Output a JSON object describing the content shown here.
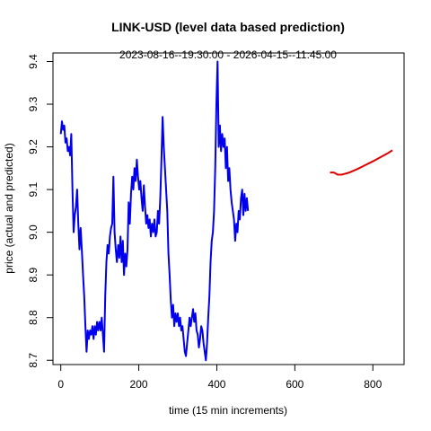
{
  "chart_data": {
    "type": "line",
    "title": "LINK-USD (level data based prediction)",
    "subtitle": "2023-08-16--19:30:00  -  2026-04-15--11:45:00",
    "xlabel": "time (15 min increments)",
    "ylabel": "price (actual and predicted)",
    "xlim": [
      -20,
      880
    ],
    "ylim": [
      8.69,
      9.42
    ],
    "x_ticks": [
      0,
      200,
      400,
      600,
      800
    ],
    "y_ticks": [
      8.7,
      8.8,
      8.9,
      9.0,
      9.1,
      9.2,
      9.3,
      9.4
    ],
    "grid": false,
    "legend": "none",
    "series": [
      {
        "color": "#0000ee",
        "points": [
          [
            0,
            9.23
          ],
          [
            3,
            9.26
          ],
          [
            6,
            9.24
          ],
          [
            9,
            9.25
          ],
          [
            12,
            9.21
          ],
          [
            15,
            9.22
          ],
          [
            18,
            9.19
          ],
          [
            21,
            9.2
          ],
          [
            24,
            9.18
          ],
          [
            27,
            9.23
          ],
          [
            30,
            9.1
          ],
          [
            33,
            9.0
          ],
          [
            36,
            9.04
          ],
          [
            39,
            9.06
          ],
          [
            42,
            9.1
          ],
          [
            45,
            9.02
          ],
          [
            48,
            8.96
          ],
          [
            51,
            9.01
          ],
          [
            54,
            8.96
          ],
          [
            57,
            8.9
          ],
          [
            60,
            8.85
          ],
          [
            63,
            8.78
          ],
          [
            66,
            8.72
          ],
          [
            69,
            8.77
          ],
          [
            72,
            8.75
          ],
          [
            75,
            8.77
          ],
          [
            78,
            8.76
          ],
          [
            81,
            8.78
          ],
          [
            84,
            8.75
          ],
          [
            87,
            8.78
          ],
          [
            90,
            8.76
          ],
          [
            93,
            8.79
          ],
          [
            96,
            8.77
          ],
          [
            99,
            8.79
          ],
          [
            102,
            8.77
          ],
          [
            105,
            8.8
          ],
          [
            108,
            8.76
          ],
          [
            111,
            8.72
          ],
          [
            114,
            8.85
          ],
          [
            117,
            8.93
          ],
          [
            120,
            8.97
          ],
          [
            123,
            8.95
          ],
          [
            126,
            8.99
          ],
          [
            129,
            9.01
          ],
          [
            132,
            9.02
          ],
          [
            135,
            9.13
          ],
          [
            138,
            9.0
          ],
          [
            141,
            8.96
          ],
          [
            144,
            8.93
          ],
          [
            147,
            8.97
          ],
          [
            150,
            8.94
          ],
          [
            153,
            8.99
          ],
          [
            156,
            8.93
          ],
          [
            159,
            8.98
          ],
          [
            162,
            8.9
          ],
          [
            165,
            8.95
          ],
          [
            168,
            8.92
          ],
          [
            171,
            8.96
          ],
          [
            174,
            9.07
          ],
          [
            177,
            9.02
          ],
          [
            180,
            9.09
          ],
          [
            183,
            9.13
          ],
          [
            186,
            9.1
          ],
          [
            189,
            9.15
          ],
          [
            192,
            9.12
          ],
          [
            195,
            9.17
          ],
          [
            198,
            9.13
          ],
          [
            201,
            9.1
          ],
          [
            204,
            9.12
          ],
          [
            207,
            9.08
          ],
          [
            210,
            9.05
          ],
          [
            213,
            9.11
          ],
          [
            216,
            9.06
          ],
          [
            219,
            9.02
          ],
          [
            222,
            9.04
          ],
          [
            225,
            9.01
          ],
          [
            228,
            9.03
          ],
          [
            231,
            8.99
          ],
          [
            234,
            9.02
          ],
          [
            237,
            9.0
          ],
          [
            240,
            9.03
          ],
          [
            243,
            8.99
          ],
          [
            246,
            9.0
          ],
          [
            249,
            9.05
          ],
          [
            252,
            9.02
          ],
          [
            255,
            9.08
          ],
          [
            258,
            9.17
          ],
          [
            261,
            9.27
          ],
          [
            264,
            9.2
          ],
          [
            267,
            9.15
          ],
          [
            270,
            9.1
          ],
          [
            273,
            9.05
          ],
          [
            276,
            8.95
          ],
          [
            279,
            8.9
          ],
          [
            282,
            8.84
          ],
          [
            285,
            8.8
          ],
          [
            288,
            8.83
          ],
          [
            291,
            8.78
          ],
          [
            294,
            8.81
          ],
          [
            297,
            8.79
          ],
          [
            300,
            8.81
          ],
          [
            303,
            8.78
          ],
          [
            306,
            8.8
          ],
          [
            309,
            8.77
          ],
          [
            312,
            8.78
          ],
          [
            315,
            8.75
          ],
          [
            318,
            8.72
          ],
          [
            321,
            8.71
          ],
          [
            324,
            8.74
          ],
          [
            327,
            8.77
          ],
          [
            330,
            8.8
          ],
          [
            333,
            8.78
          ],
          [
            336,
            8.8
          ],
          [
            339,
            8.82
          ],
          [
            342,
            8.79
          ],
          [
            345,
            8.81
          ],
          [
            348,
            8.77
          ],
          [
            351,
            8.76
          ],
          [
            354,
            8.73
          ],
          [
            357,
            8.75
          ],
          [
            360,
            8.78
          ],
          [
            363,
            8.77
          ],
          [
            366,
            8.74
          ],
          [
            369,
            8.72
          ],
          [
            372,
            8.7
          ],
          [
            375,
            8.74
          ],
          [
            378,
            8.8
          ],
          [
            381,
            8.85
          ],
          [
            384,
            8.93
          ],
          [
            387,
            8.98
          ],
          [
            390,
            9.0
          ],
          [
            393,
            9.05
          ],
          [
            396,
            9.15
          ],
          [
            399,
            9.3
          ],
          [
            402,
            9.4
          ],
          [
            405,
            9.2
          ],
          [
            408,
            9.25
          ],
          [
            411,
            9.19
          ],
          [
            414,
            9.23
          ],
          [
            417,
            9.2
          ],
          [
            420,
            9.22
          ],
          [
            423,
            9.15
          ],
          [
            426,
            9.2
          ],
          [
            429,
            9.12
          ],
          [
            432,
            9.15
          ],
          [
            435,
            9.1
          ],
          [
            438,
            9.07
          ],
          [
            441,
            9.05
          ],
          [
            444,
            9.03
          ],
          [
            447,
            8.98
          ],
          [
            450,
            9.02
          ],
          [
            453,
            9.0
          ],
          [
            456,
            9.05
          ],
          [
            459,
            9.03
          ],
          [
            462,
            9.08
          ],
          [
            465,
            9.1
          ],
          [
            468,
            9.04
          ],
          [
            471,
            9.09
          ],
          [
            474,
            9.05
          ],
          [
            477,
            9.08
          ],
          [
            480,
            9.05
          ]
        ]
      },
      {
        "color": "#dd0000",
        "points": [
          [
            690,
            9.14
          ],
          [
            700,
            9.14
          ],
          [
            710,
            9.135
          ],
          [
            720,
            9.135
          ],
          [
            740,
            9.14
          ],
          [
            760,
            9.148
          ],
          [
            780,
            9.157
          ],
          [
            800,
            9.166
          ],
          [
            820,
            9.176
          ],
          [
            840,
            9.186
          ],
          [
            850,
            9.192
          ]
        ]
      }
    ]
  }
}
